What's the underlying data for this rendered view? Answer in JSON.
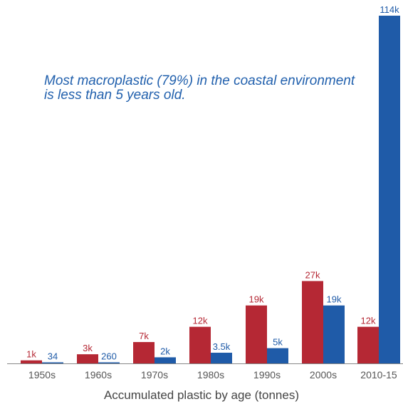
{
  "chart_data": {
    "type": "bar",
    "categories": [
      "1950s",
      "1960s",
      "1970s",
      "1980s",
      "1990s",
      "2000s",
      "2010-15"
    ],
    "series": [
      {
        "values": [
          1000,
          3000,
          7000,
          12000,
          19000,
          27000,
          12000
        ],
        "labels": [
          "1k",
          "3k",
          "7k",
          "12k",
          "19k",
          "27k",
          "12k"
        ],
        "color": "#b52834"
      },
      {
        "values": [
          34,
          260,
          2000,
          3500,
          5000,
          19000,
          114000
        ],
        "labels": [
          "34",
          "260",
          "2k",
          "3.5k",
          "5k",
          "19k",
          "114k"
        ],
        "color": "#1f5ba8"
      }
    ],
    "annotation": "Most macroplastic (79%) in the coastal environment is less than 5 years old.",
    "xlabel": "Accumulated plastic by age (tonnes)",
    "ylabel": "",
    "ylim": [
      0,
      114000
    ],
    "grid": false,
    "legend": "none"
  }
}
